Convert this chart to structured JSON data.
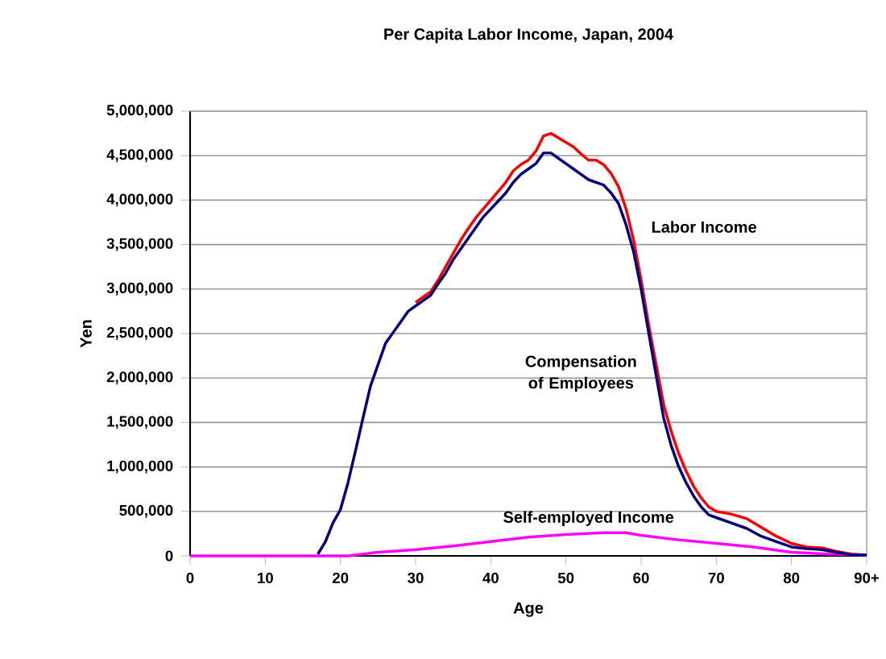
{
  "chart_data": {
    "type": "line",
    "title": "Per Capita Labor Income, Japan, 2004",
    "xlabel": "Age",
    "ylabel": "Yen",
    "xlim": [
      0,
      90
    ],
    "ylim": [
      0,
      5000000
    ],
    "xticks": [
      0,
      10,
      20,
      30,
      40,
      50,
      60,
      70,
      80,
      {
        "value": 90,
        "label": "90+"
      }
    ],
    "yticks": [
      {
        "value": 0,
        "label": "0"
      },
      {
        "value": 500000,
        "label": "500,000"
      },
      {
        "value": 1000000,
        "label": "1,000,000"
      },
      {
        "value": 1500000,
        "label": "1,500,000"
      },
      {
        "value": 2000000,
        "label": "2,000,000"
      },
      {
        "value": 2500000,
        "label": "2,500,000"
      },
      {
        "value": 3000000,
        "label": "3,000,000"
      },
      {
        "value": 3500000,
        "label": "3,500,000"
      },
      {
        "value": 4000000,
        "label": "4,000,000"
      },
      {
        "value": 4500000,
        "label": "4,500,000"
      },
      {
        "value": 5000000,
        "label": "5,000,000"
      }
    ],
    "grid": "y",
    "legend": false,
    "marker": "none",
    "line_style": "solid",
    "series": [
      {
        "name": "Labor Income",
        "color": "#ff0000",
        "x": [
          30,
          31,
          32,
          33,
          34,
          35,
          36,
          37,
          38,
          39,
          40,
          41,
          42,
          43,
          44,
          45,
          46,
          47,
          48,
          49,
          50,
          51,
          52,
          53,
          54,
          55,
          56,
          57,
          58,
          59,
          60,
          61,
          62,
          63,
          64,
          65,
          66,
          67,
          68,
          69,
          70,
          72,
          74,
          76,
          78,
          80,
          82,
          84,
          86,
          88,
          90
        ],
        "values": [
          2850000,
          2910000,
          2970000,
          3100000,
          3250000,
          3400000,
          3550000,
          3680000,
          3800000,
          3900000,
          4000000,
          4100000,
          4200000,
          4330000,
          4400000,
          4450000,
          4550000,
          4720000,
          4750000,
          4700000,
          4650000,
          4600000,
          4520000,
          4450000,
          4450000,
          4400000,
          4300000,
          4150000,
          3900000,
          3550000,
          3100000,
          2600000,
          2150000,
          1700000,
          1400000,
          1150000,
          950000,
          780000,
          650000,
          550000,
          500000,
          470000,
          420000,
          320000,
          220000,
          140000,
          100000,
          90000,
          50000,
          20000,
          10000
        ]
      },
      {
        "name": "Compensation of Employees",
        "color": "#000080",
        "x": [
          17,
          18,
          19,
          20,
          21,
          22,
          23,
          24,
          25,
          26,
          27,
          28,
          29,
          30,
          31,
          32,
          33,
          34,
          35,
          36,
          37,
          38,
          39,
          40,
          41,
          42,
          43,
          44,
          45,
          46,
          47,
          48,
          49,
          50,
          51,
          52,
          53,
          54,
          55,
          56,
          57,
          58,
          59,
          60,
          61,
          62,
          63,
          64,
          65,
          66,
          67,
          68,
          69,
          70,
          72,
          74,
          76,
          78,
          80,
          82,
          84,
          86,
          88,
          90
        ],
        "values": [
          20000,
          160000,
          370000,
          520000,
          820000,
          1180000,
          1550000,
          1910000,
          2150000,
          2390000,
          2510000,
          2630000,
          2750000,
          2810000,
          2870000,
          2930000,
          3060000,
          3180000,
          3330000,
          3450000,
          3570000,
          3690000,
          3810000,
          3900000,
          3990000,
          4080000,
          4200000,
          4290000,
          4350000,
          4410000,
          4530000,
          4530000,
          4470000,
          4410000,
          4350000,
          4290000,
          4230000,
          4200000,
          4170000,
          4080000,
          3960000,
          3720000,
          3420000,
          3000000,
          2510000,
          2030000,
          1550000,
          1240000,
          1000000,
          820000,
          670000,
          550000,
          460000,
          430000,
          370000,
          310000,
          220000,
          160000,
          100000,
          80000,
          70000,
          40000,
          10000,
          10000
        ]
      },
      {
        "name": "Self-employed Income",
        "color": "#ff00ff",
        "x": [
          0,
          10,
          20,
          21,
          22,
          25,
          30,
          35,
          40,
          45,
          50,
          55,
          58,
          60,
          65,
          70,
          75,
          80,
          85,
          90
        ],
        "values": [
          0,
          0,
          0,
          0,
          10000,
          40000,
          70000,
          110000,
          160000,
          210000,
          240000,
          260000,
          260000,
          230000,
          180000,
          140000,
          100000,
          40000,
          20000,
          10000
        ]
      }
    ]
  }
}
